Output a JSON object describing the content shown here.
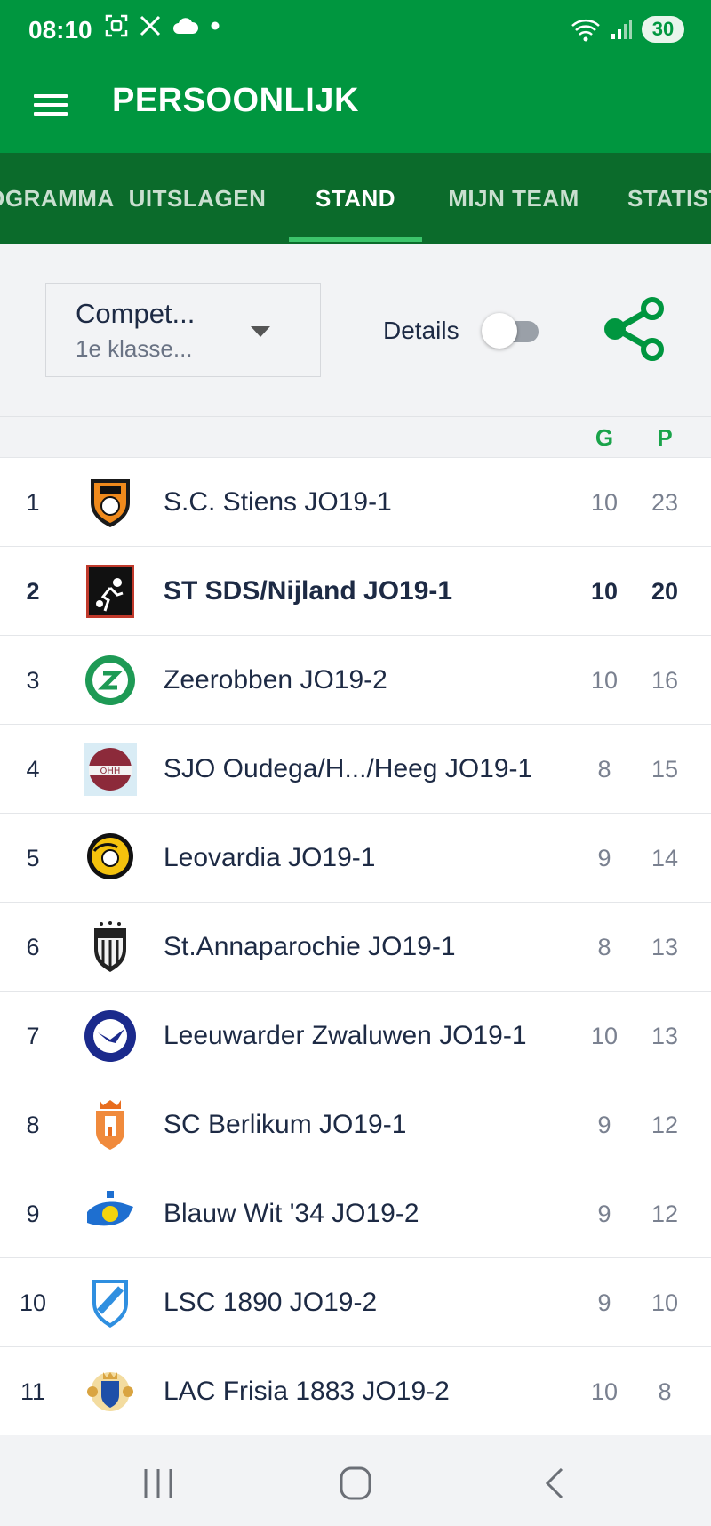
{
  "status_bar": {
    "time": "08:10",
    "left_icons": [
      "screenshot-icon",
      "x-logo-icon",
      "cloud-icon",
      "dot-icon"
    ],
    "right_icons": [
      "wifi-icon",
      "signal-icon"
    ],
    "battery": "30"
  },
  "app_bar": {
    "title": "PERSOONLIJK",
    "menu_icon": "hamburger-menu-icon"
  },
  "tabs": [
    {
      "label": "PROGRAMMA",
      "active": false
    },
    {
      "label": "UITSLAGEN",
      "active": false
    },
    {
      "label": "STAND",
      "active": true
    },
    {
      "label": "MIJN TEAM",
      "active": false
    },
    {
      "label": "STATISTIEKEN",
      "active": false
    }
  ],
  "filter": {
    "title": "Compet...",
    "subtitle": "1e klasse...",
    "details_label": "Details",
    "details_enabled": false,
    "share_icon": "share-icon"
  },
  "table": {
    "headers": {
      "g": "G",
      "p": "P"
    },
    "rows": [
      {
        "rank": "1",
        "team": "S.C. Stiens JO19-1",
        "g": "10",
        "p": "23",
        "highlight": false,
        "logo": "stiens-logo"
      },
      {
        "rank": "2",
        "team": "ST SDS/Nijland JO19-1",
        "g": "10",
        "p": "20",
        "highlight": true,
        "logo": "sds-logo"
      },
      {
        "rank": "3",
        "team": "Zeerobben JO19-2",
        "g": "10",
        "p": "16",
        "highlight": false,
        "logo": "zeerobben-logo"
      },
      {
        "rank": "4",
        "team": "SJO Oudega/H.../Heeg JO19-1",
        "g": "8",
        "p": "15",
        "highlight": false,
        "logo": "ohh-logo"
      },
      {
        "rank": "5",
        "team": "Leovardia JO19-1",
        "g": "9",
        "p": "14",
        "highlight": false,
        "logo": "leovardia-logo"
      },
      {
        "rank": "6",
        "team": "St.Annaparochie JO19-1",
        "g": "8",
        "p": "13",
        "highlight": false,
        "logo": "st-anna-logo"
      },
      {
        "rank": "7",
        "team": "Leeuwarder Zwaluwen JO19-1",
        "g": "10",
        "p": "13",
        "highlight": false,
        "logo": "zwaluwen-logo"
      },
      {
        "rank": "8",
        "team": "SC Berlikum JO19-1",
        "g": "9",
        "p": "12",
        "highlight": false,
        "logo": "berlikum-logo"
      },
      {
        "rank": "9",
        "team": "Blauw Wit '34 JO19-2",
        "g": "9",
        "p": "12",
        "highlight": false,
        "logo": "blauw-wit-logo"
      },
      {
        "rank": "10",
        "team": "LSC 1890 JO19-2",
        "g": "9",
        "p": "10",
        "highlight": false,
        "logo": "lsc-logo"
      },
      {
        "rank": "11",
        "team": "LAC Frisia 1883 JO19-2",
        "g": "10",
        "p": "8",
        "highlight": false,
        "logo": "frisia-logo"
      }
    ]
  },
  "nav_bar": {
    "buttons": [
      "recent-apps-icon",
      "home-icon",
      "back-icon"
    ]
  },
  "colors": {
    "primary": "#00963f",
    "tab_bar": "#0b6b2b",
    "indicator": "#3cc46b",
    "text": "#1d2a44"
  }
}
